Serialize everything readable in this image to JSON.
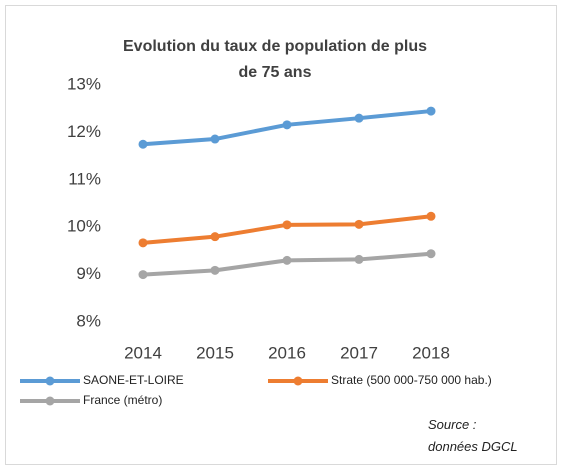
{
  "chart_data": {
    "type": "line",
    "title": "Evolution du taux de population de plus de 75 ans",
    "categories": [
      "2014",
      "2015",
      "2016",
      "2017",
      "2018"
    ],
    "series": [
      {
        "name": "SAONE-ET-LOIRE",
        "color": "#5b9bd5",
        "values": [
          11.75,
          11.86,
          12.16,
          12.3,
          12.45
        ]
      },
      {
        "name": "Strate (500 000-750 000 hab.)",
        "color": "#ed7d31",
        "values": [
          9.67,
          9.8,
          10.05,
          10.06,
          10.23
        ]
      },
      {
        "name": "France (métro)",
        "color": "#a5a5a5",
        "values": [
          9.0,
          9.09,
          9.3,
          9.32,
          9.44
        ]
      }
    ],
    "ylim": [
      8,
      13
    ],
    "yticks": [
      {
        "value": 8,
        "label": "8%"
      },
      {
        "value": 9,
        "label": "9%"
      },
      {
        "value": 10,
        "label": "10%"
      },
      {
        "value": 11,
        "label": "11%"
      },
      {
        "value": 12,
        "label": "12%"
      },
      {
        "value": 13,
        "label": "13%"
      }
    ],
    "grid": false,
    "legend": "bottom",
    "annotation": "Source : données DGCL"
  }
}
